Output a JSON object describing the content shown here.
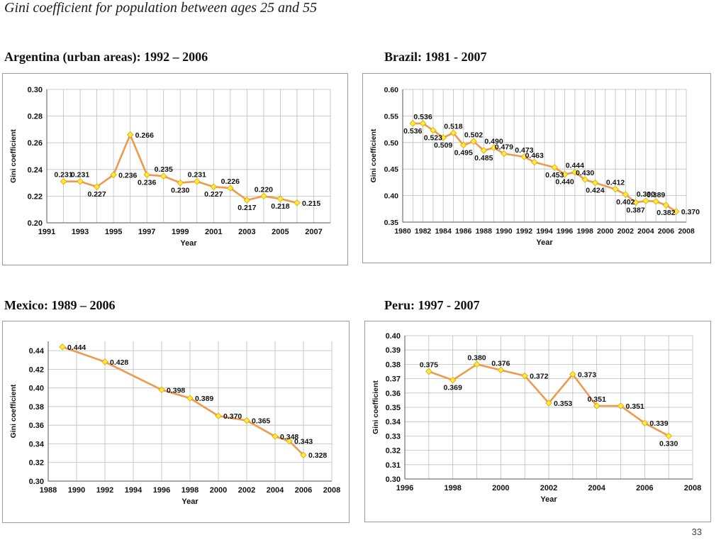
{
  "page": {
    "title": "Gini coefficient for population between ages 25 and 55",
    "page_number": "33"
  },
  "style": {
    "line_color": "#ED9A4E",
    "marker_color": "#FFE840",
    "marker_stroke": "#D9A800",
    "grid_color": "#bdbdbd"
  },
  "chart_data": [
    {
      "type": "line",
      "title": "Argentina (urban areas): 1992 – 2006",
      "xlabel": "Year",
      "ylabel": "Gini coefficient",
      "xlim": [
        1991,
        2008
      ],
      "ylim": [
        0.2,
        0.3
      ],
      "xticks": [
        1991,
        1993,
        1995,
        1997,
        1999,
        2001,
        2003,
        2005,
        2007
      ],
      "yticks": [
        0.2,
        0.22,
        0.24,
        0.26,
        0.28,
        0.3
      ],
      "xgrid": [
        1991,
        1992,
        1993,
        1994,
        1995,
        1996,
        1997,
        1998,
        1999,
        2000,
        2001,
        2002,
        2003,
        2004,
        2005,
        2006,
        2007,
        2008
      ],
      "ydecimals": 2,
      "x": [
        1992,
        1993,
        1994,
        1995,
        1996,
        1997,
        1998,
        1999,
        2000,
        2001,
        2002,
        2003,
        2004,
        2005,
        2006
      ],
      "values": [
        0.231,
        0.231,
        0.227,
        0.236,
        0.266,
        0.236,
        0.235,
        0.23,
        0.231,
        0.227,
        0.226,
        0.217,
        0.22,
        0.218,
        0.215
      ],
      "labels": [
        "0.231",
        "0.231",
        "0.227",
        "0.236",
        "0.266",
        "0.236",
        "0.235",
        "0.230",
        "0.231",
        "0.227",
        "0.226",
        "0.217",
        "0.220",
        "0.218",
        "0.215"
      ],
      "label_pos": [
        "above",
        "above",
        "below",
        "right",
        "right",
        "below",
        "above",
        "below",
        "above",
        "below",
        "above",
        "below",
        "above",
        "below",
        "right"
      ]
    },
    {
      "type": "line",
      "title": "Brazil: 1981 - 2007",
      "xlabel": "Year",
      "ylabel": "Gini coefficient",
      "xlim": [
        1980,
        2008
      ],
      "ylim": [
        0.35,
        0.6
      ],
      "xticks": [
        1980,
        1982,
        1984,
        1986,
        1988,
        1990,
        1992,
        1994,
        1996,
        1998,
        2000,
        2002,
        2004,
        2006,
        2008
      ],
      "yticks": [
        0.35,
        0.4,
        0.45,
        0.5,
        0.55,
        0.6
      ],
      "xgrid": [
        1980,
        1981,
        1982,
        1983,
        1984,
        1985,
        1986,
        1987,
        1988,
        1989,
        1990,
        1991,
        1992,
        1993,
        1994,
        1995,
        1996,
        1997,
        1998,
        1999,
        2000,
        2001,
        2002,
        2003,
        2004,
        2005,
        2006,
        2007,
        2008
      ],
      "ydecimals": 2,
      "x": [
        1981,
        1982,
        1983,
        1984,
        1985,
        1986,
        1987,
        1988,
        1989,
        1990,
        1992,
        1993,
        1995,
        1996,
        1997,
        1998,
        1999,
        2001,
        2002,
        2003,
        2004,
        2005,
        2006,
        2007
      ],
      "values": [
        0.536,
        0.536,
        0.523,
        0.509,
        0.518,
        0.495,
        0.502,
        0.485,
        0.49,
        0.479,
        0.473,
        0.463,
        0.453,
        0.44,
        0.444,
        0.43,
        0.424,
        0.412,
        0.402,
        0.387,
        0.39,
        0.389,
        0.382,
        0.37
      ],
      "labels": [
        "0.536",
        "0.536",
        "0.523",
        "0.509",
        "0.518",
        "0.495",
        "0.502",
        "0.485",
        "0.490",
        "0.479",
        "0.473",
        "0.463",
        "0.453",
        "0.440",
        "0.444",
        "0.430",
        "0.424",
        "0.412",
        "0.402",
        "0.387",
        "0.390",
        "0.389",
        "0.382",
        "0.370"
      ],
      "label_pos": [
        "below",
        "above",
        "below",
        "below",
        "above",
        "below",
        "above",
        "below",
        "above",
        "above",
        "above",
        "above",
        "below",
        "below",
        "above",
        "above",
        "below",
        "above",
        "below",
        "below",
        "above",
        "above",
        "below",
        "right"
      ]
    },
    {
      "type": "line",
      "title": "Mexico: 1989 – 2006",
      "xlabel": "Year",
      "ylabel": "Gini coefficient",
      "xlim": [
        1988,
        2008
      ],
      "ylim": [
        0.3,
        0.45
      ],
      "xticks": [
        1988,
        1990,
        1992,
        1994,
        1996,
        1998,
        2000,
        2002,
        2004,
        2006,
        2008
      ],
      "yticks": [
        0.3,
        0.32,
        0.34,
        0.36,
        0.38,
        0.4,
        0.42,
        0.44
      ],
      "xgrid": [
        1988,
        1990,
        1992,
        1994,
        1996,
        1998,
        2000,
        2002,
        2004,
        2006,
        2008
      ],
      "ydecimals": 2,
      "x": [
        1989,
        1992,
        1996,
        1998,
        2000,
        2002,
        2004,
        2005,
        2006
      ],
      "values": [
        0.444,
        0.428,
        0.398,
        0.389,
        0.37,
        0.365,
        0.348,
        0.343,
        0.328
      ],
      "labels": [
        "0.444",
        "0.428",
        "0.398",
        "0.389",
        "0.370",
        "0.365",
        "0.348",
        "0.343",
        "0.328"
      ],
      "label_pos": [
        "right",
        "right",
        "right",
        "right",
        "right",
        "right",
        "right",
        "right",
        "right"
      ]
    },
    {
      "type": "line",
      "title": "Peru: 1997 - 2007",
      "xlabel": "Year",
      "ylabel": "Gini coefficient",
      "xlim": [
        1996,
        2008
      ],
      "ylim": [
        0.3,
        0.4
      ],
      "xticks": [
        1996,
        1998,
        2000,
        2002,
        2004,
        2006,
        2008
      ],
      "yticks": [
        0.3,
        0.31,
        0.32,
        0.33,
        0.34,
        0.35,
        0.36,
        0.37,
        0.38,
        0.39,
        0.4
      ],
      "xgrid": [
        1996,
        1997,
        1998,
        1999,
        2000,
        2001,
        2002,
        2003,
        2004,
        2005,
        2006,
        2007,
        2008
      ],
      "ydecimals": 2,
      "x": [
        1997,
        1998,
        1999,
        2000,
        2001,
        2002,
        2003,
        2004,
        2005,
        2006,
        2007
      ],
      "values": [
        0.375,
        0.369,
        0.38,
        0.376,
        0.372,
        0.353,
        0.373,
        0.351,
        0.351,
        0.339,
        0.33
      ],
      "labels": [
        "0.375",
        "0.369",
        "0.380",
        "0.376",
        "0.372",
        "0.353",
        "0.373",
        "0.351",
        "0.351",
        "0.339",
        "0.330"
      ],
      "label_pos": [
        "above",
        "below",
        "above",
        "above",
        "right",
        "right",
        "right",
        "above",
        "right",
        "right",
        "below"
      ]
    }
  ]
}
